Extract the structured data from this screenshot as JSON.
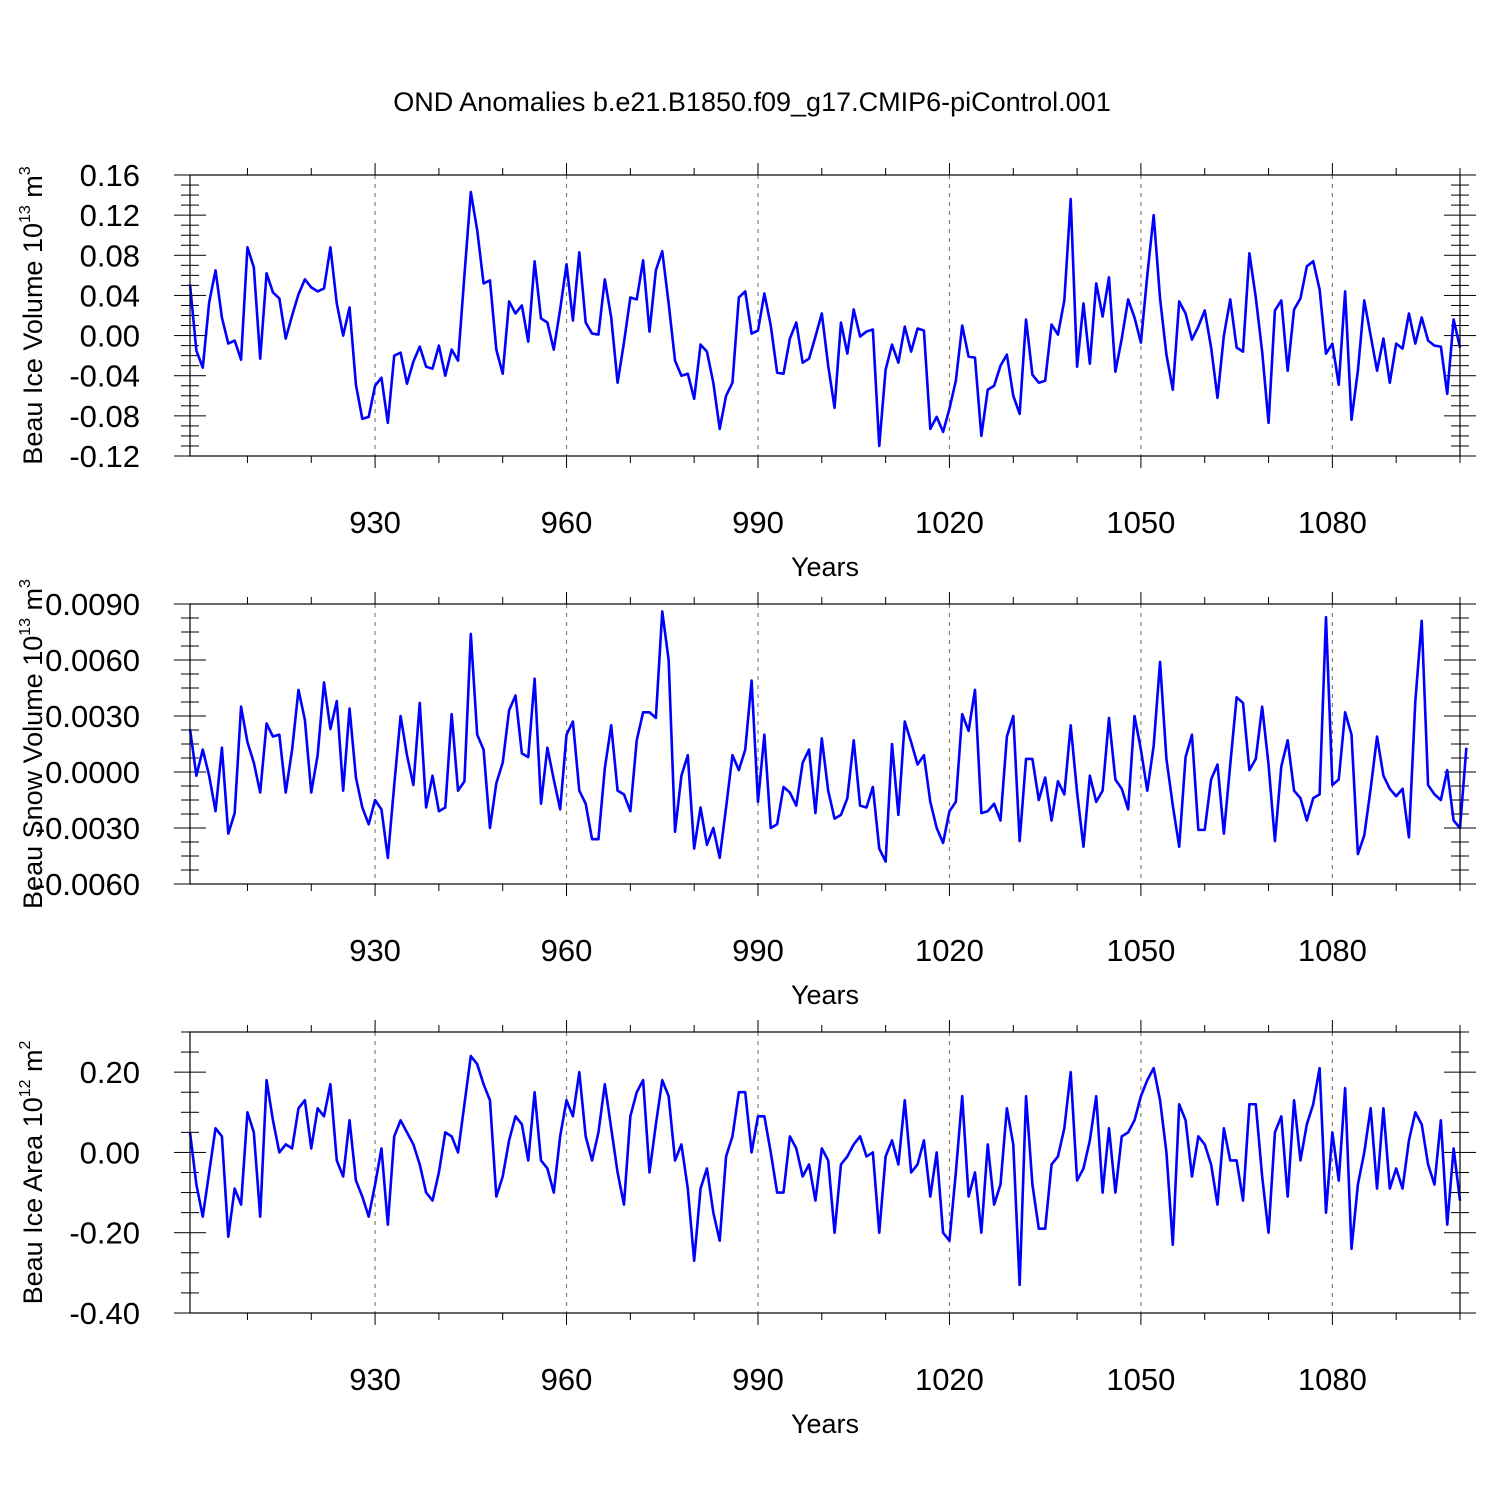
{
  "title": "OND Anomalies b.e21.B1850.f09_g17.CMIP6-piControl.001",
  "series_color": "#0000ff",
  "gridline_color": "#808080",
  "chart_data": [
    {
      "type": "line",
      "panel": "top",
      "ylabel": {
        "base": "Beau Ice Volume 10",
        "exp": "13",
        "unit": " m",
        "unit_exp": "3"
      },
      "xlabel": "Years",
      "xlim": [
        901,
        1100
      ],
      "ylim": [
        -0.12,
        0.16
      ],
      "xticks": [
        930,
        960,
        990,
        1020,
        1050,
        1080
      ],
      "xtick_labels": [
        "930",
        "960",
        "990",
        "1020",
        "1050",
        "1080"
      ],
      "yticks": [
        -0.12,
        -0.08,
        -0.04,
        0.0,
        0.04,
        0.08,
        0.12,
        0.16
      ],
      "ytick_labels": [
        "-0.12",
        "-0.08",
        "-0.04",
        "0.00",
        "0.04",
        "0.08",
        "0.12",
        "0.16"
      ],
      "grid": "vertical dashed at major x ticks",
      "x_start": 901,
      "values": [
        0.051,
        -0.015,
        -0.032,
        0.033,
        0.065,
        0.018,
        -0.008,
        -0.005,
        -0.024,
        0.088,
        0.068,
        -0.023,
        0.062,
        0.043,
        0.037,
        -0.003,
        0.02,
        0.041,
        0.056,
        0.048,
        0.044,
        0.047,
        0.088,
        0.032,
        0.0,
        0.028,
        -0.049,
        -0.083,
        -0.081,
        -0.05,
        -0.042,
        -0.087,
        -0.02,
        -0.017,
        -0.048,
        -0.026,
        -0.011,
        -0.031,
        -0.033,
        -0.01,
        -0.04,
        -0.014,
        -0.025,
        0.06,
        0.143,
        0.105,
        0.052,
        0.055,
        -0.014,
        -0.038,
        0.034,
        0.022,
        0.03,
        -0.006,
        0.074,
        0.017,
        0.013,
        -0.014,
        0.026,
        0.071,
        0.015,
        0.083,
        0.013,
        0.002,
        0.001,
        0.056,
        0.018,
        -0.047,
        -0.007,
        0.038,
        0.036,
        0.075,
        0.004,
        0.065,
        0.084,
        0.032,
        -0.025,
        -0.04,
        -0.038,
        -0.063,
        -0.009,
        -0.016,
        -0.047,
        -0.093,
        -0.06,
        -0.047,
        0.038,
        0.044,
        0.002,
        0.005,
        0.042,
        0.01,
        -0.037,
        -0.038,
        -0.003,
        0.013,
        -0.027,
        -0.023,
        -0.001,
        0.022,
        -0.03,
        -0.072,
        0.013,
        -0.018,
        0.026,
        -0.001,
        0.004,
        0.006,
        -0.11,
        -0.034,
        -0.009,
        -0.027,
        0.009,
        -0.016,
        0.007,
        0.005,
        -0.093,
        -0.081,
        -0.096,
        -0.073,
        -0.045,
        0.01,
        -0.021,
        -0.022,
        -0.1,
        -0.054,
        -0.05,
        -0.03,
        -0.019,
        -0.06,
        -0.078,
        0.016,
        -0.039,
        -0.047,
        -0.045,
        0.011,
        0.001,
        0.035,
        0.136,
        -0.031,
        0.032,
        -0.028,
        0.052,
        0.019,
        0.058,
        -0.036,
        -0.003,
        0.036,
        0.018,
        -0.007,
        0.06,
        0.12,
        0.037,
        -0.019,
        -0.054,
        0.034,
        0.022,
        -0.004,
        0.009,
        0.025,
        -0.012,
        -0.062,
        0.0,
        0.036,
        -0.012,
        -0.016,
        0.082,
        0.038,
        -0.016,
        -0.087,
        0.025,
        0.035,
        -0.035,
        0.026,
        0.037,
        0.069,
        0.074,
        0.046,
        -0.018,
        -0.008,
        -0.049,
        0.044,
        -0.084,
        -0.035,
        0.035,
        0.0,
        -0.035,
        -0.003,
        -0.047,
        -0.008,
        -0.013,
        0.022,
        -0.008,
        0.018,
        -0.005,
        -0.01,
        -0.011,
        -0.058,
        0.016,
        -0.012
      ]
    },
    {
      "type": "line",
      "panel": "middle",
      "ylabel": {
        "base": "Beau Snow Volume 10",
        "exp": "13",
        "unit": " m",
        "unit_exp": "3"
      },
      "xlabel": "Years",
      "xlim": [
        901,
        1100
      ],
      "ylim": [
        -0.006,
        0.009
      ],
      "xticks": [
        930,
        960,
        990,
        1020,
        1050,
        1080
      ],
      "xtick_labels": [
        "930",
        "960",
        "990",
        "1020",
        "1050",
        "1080"
      ],
      "yticks": [
        -0.006,
        -0.003,
        0.0,
        0.003,
        0.006,
        0.009
      ],
      "ytick_labels": [
        "-0.0060",
        "-0.0030",
        "0.0000",
        "0.0030",
        "0.0060",
        "0.0090"
      ],
      "grid": "vertical dashed at major x ticks",
      "x_start": 901,
      "values": [
        0.0023,
        -0.0002,
        0.0012,
        -0.0002,
        -0.0021,
        0.0013,
        -0.0033,
        -0.0022,
        0.0035,
        0.0016,
        0.0005,
        -0.0011,
        0.0026,
        0.0019,
        0.002,
        -0.0011,
        0.0012,
        0.0044,
        0.0028,
        -0.0011,
        0.0009,
        0.0048,
        0.0023,
        0.0038,
        -0.001,
        0.0034,
        -0.0003,
        -0.0019,
        -0.0028,
        -0.0015,
        -0.002,
        -0.0046,
        -0.0007,
        0.003,
        0.0009,
        -0.0007,
        0.0037,
        -0.0019,
        -0.0002,
        -0.0021,
        -0.0019,
        0.0031,
        -0.001,
        -0.0005,
        0.0074,
        0.002,
        0.0012,
        -0.003,
        -0.0006,
        0.0005,
        0.0033,
        0.0041,
        0.001,
        0.0008,
        0.005,
        -0.0017,
        0.0013,
        -0.0004,
        -0.002,
        0.002,
        0.0027,
        -0.001,
        -0.0017,
        -0.0036,
        -0.0036,
        0.0002,
        0.0025,
        -0.001,
        -0.0012,
        -0.0021,
        0.0017,
        0.0032,
        0.0032,
        0.0029,
        0.0086,
        0.006,
        -0.0032,
        -0.0002,
        0.0009,
        -0.0041,
        -0.0019,
        -0.0039,
        -0.003,
        -0.0046,
        -0.0019,
        0.0009,
        0.0001,
        0.0012,
        0.0049,
        -0.0016,
        0.002,
        -0.003,
        -0.0028,
        -0.0008,
        -0.0011,
        -0.0018,
        0.0005,
        0.0012,
        -0.0022,
        0.0018,
        -0.001,
        -0.0025,
        -0.0023,
        -0.0014,
        0.0017,
        -0.0018,
        -0.0019,
        -0.0008,
        -0.0041,
        -0.0048,
        0.0015,
        -0.0023,
        0.0027,
        0.0016,
        0.0004,
        0.0009,
        -0.0016,
        -0.003,
        -0.0038,
        -0.0021,
        -0.0016,
        0.0031,
        0.0022,
        0.0044,
        -0.0022,
        -0.0021,
        -0.0017,
        -0.0026,
        0.0019,
        0.003,
        -0.0037,
        0.0007,
        0.0007,
        -0.0015,
        -0.0003,
        -0.0026,
        -0.0005,
        -0.0012,
        0.0025,
        -0.0011,
        -0.004,
        -0.0002,
        -0.0016,
        -0.001,
        0.0029,
        -0.0004,
        -0.0009,
        -0.002,
        0.003,
        0.0012,
        -0.001,
        0.0014,
        0.0059,
        0.0007,
        -0.0018,
        -0.004,
        0.0008,
        0.002,
        -0.0031,
        -0.0031,
        -0.0004,
        0.0004,
        -0.0033,
        0.0004,
        0.004,
        0.0037,
        0.0001,
        0.0007,
        0.0035,
        0.0004,
        -0.0037,
        0.0003,
        0.0017,
        -0.001,
        -0.0014,
        -0.0026,
        -0.0014,
        -0.0012,
        0.0083,
        -0.0007,
        -0.0004,
        0.0032,
        0.002,
        -0.0044,
        -0.0034,
        -0.0009,
        0.0019,
        -0.0002,
        -0.0009,
        -0.0013,
        -0.0009,
        -0.0035,
        0.0038,
        0.0081,
        -0.0007,
        -0.0012,
        -0.0015,
        0.0001,
        -0.0026,
        -0.003,
        0.0013
      ]
    },
    {
      "type": "line",
      "panel": "bottom",
      "ylabel": {
        "base": "Beau Ice Area 10",
        "exp": "12",
        "unit": " m",
        "unit_exp": "2"
      },
      "xlabel": "Years",
      "xlim": [
        901,
        1100
      ],
      "ylim": [
        -0.4,
        0.3
      ],
      "xticks": [
        930,
        960,
        990,
        1020,
        1050,
        1080
      ],
      "xtick_labels": [
        "930",
        "960",
        "990",
        "1020",
        "1050",
        "1080"
      ],
      "yticks": [
        -0.4,
        -0.2,
        0.0,
        0.2
      ],
      "ytick_labels": [
        "-0.40",
        "-0.20",
        "0.00",
        "0.20"
      ],
      "grid": "vertical dashed at major x ticks",
      "x_start": 901,
      "values": [
        0.05,
        -0.08,
        -0.16,
        -0.05,
        0.06,
        0.04,
        -0.21,
        -0.09,
        -0.13,
        0.1,
        0.05,
        -0.16,
        0.18,
        0.08,
        0.0,
        0.02,
        0.01,
        0.11,
        0.13,
        0.01,
        0.11,
        0.09,
        0.17,
        -0.02,
        -0.06,
        0.08,
        -0.07,
        -0.11,
        -0.16,
        -0.08,
        0.01,
        -0.18,
        0.04,
        0.08,
        0.05,
        0.02,
        -0.03,
        -0.1,
        -0.12,
        -0.05,
        0.05,
        0.04,
        0.0,
        0.12,
        0.24,
        0.22,
        0.17,
        0.13,
        -0.11,
        -0.06,
        0.03,
        0.09,
        0.07,
        -0.02,
        0.15,
        -0.02,
        -0.04,
        -0.1,
        0.04,
        0.13,
        0.09,
        0.2,
        0.04,
        -0.02,
        0.05,
        0.17,
        0.06,
        -0.05,
        -0.13,
        0.09,
        0.15,
        0.18,
        -0.05,
        0.07,
        0.18,
        0.14,
        -0.02,
        0.02,
        -0.09,
        -0.27,
        -0.09,
        -0.04,
        -0.15,
        -0.22,
        -0.01,
        0.04,
        0.15,
        0.15,
        0.0,
        0.09,
        0.09,
        0.0,
        -0.1,
        -0.1,
        0.04,
        0.01,
        -0.06,
        -0.03,
        -0.12,
        0.01,
        -0.02,
        -0.2,
        -0.03,
        -0.01,
        0.02,
        0.04,
        -0.01,
        0.0,
        -0.2,
        -0.01,
        0.03,
        -0.03,
        0.13,
        -0.05,
        -0.03,
        0.03,
        -0.11,
        0.0,
        -0.2,
        -0.22,
        -0.05,
        0.14,
        -0.11,
        -0.05,
        -0.2,
        0.02,
        -0.13,
        -0.08,
        0.11,
        0.02,
        -0.33,
        0.14,
        -0.08,
        -0.19,
        -0.19,
        -0.03,
        -0.01,
        0.06,
        0.2,
        -0.07,
        -0.04,
        0.03,
        0.14,
        -0.1,
        0.06,
        -0.1,
        0.04,
        0.05,
        0.08,
        0.14,
        0.18,
        0.21,
        0.13,
        0.0,
        -0.23,
        0.12,
        0.08,
        -0.06,
        0.04,
        0.02,
        -0.03,
        -0.13,
        0.06,
        -0.02,
        -0.02,
        -0.12,
        0.12,
        0.12,
        -0.06,
        -0.2,
        0.05,
        0.09,
        -0.11,
        0.13,
        -0.02,
        0.07,
        0.12,
        0.21,
        -0.15,
        0.05,
        -0.07,
        0.16,
        -0.24,
        -0.08,
        0.0,
        0.11,
        -0.09,
        0.11,
        -0.09,
        -0.04,
        -0.09,
        0.03,
        0.1,
        0.07,
        -0.03,
        -0.08,
        0.08,
        -0.18,
        0.01,
        -0.12
      ]
    }
  ]
}
